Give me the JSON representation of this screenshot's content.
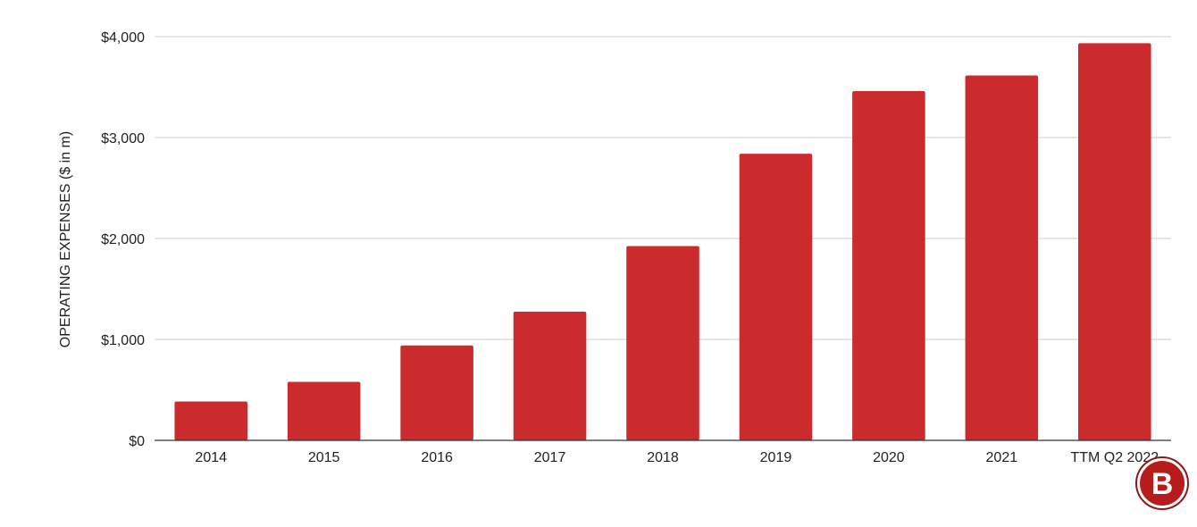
{
  "chart_data": {
    "type": "bar",
    "title": "",
    "xlabel": "",
    "ylabel": "OPERATING EXPENSES ($ in m)",
    "categories": [
      "2014",
      "2015",
      "2016",
      "2017",
      "2018",
      "2019",
      "2020",
      "2021",
      "TTM Q2 2022"
    ],
    "values": [
      385,
      580,
      940,
      1275,
      1925,
      2840,
      3460,
      3615,
      3935
    ],
    "ylim": [
      0,
      4000
    ],
    "yticks": [
      0,
      1000,
      2000,
      3000,
      4000
    ],
    "ytick_labels": [
      "$0",
      "$1,000",
      "$2,000",
      "$3,000",
      "$4,000"
    ],
    "grid": true,
    "legend": "none",
    "bar_color": "#cc2b2d"
  },
  "logo": {
    "letter": "B",
    "color": "#b71c1c"
  }
}
